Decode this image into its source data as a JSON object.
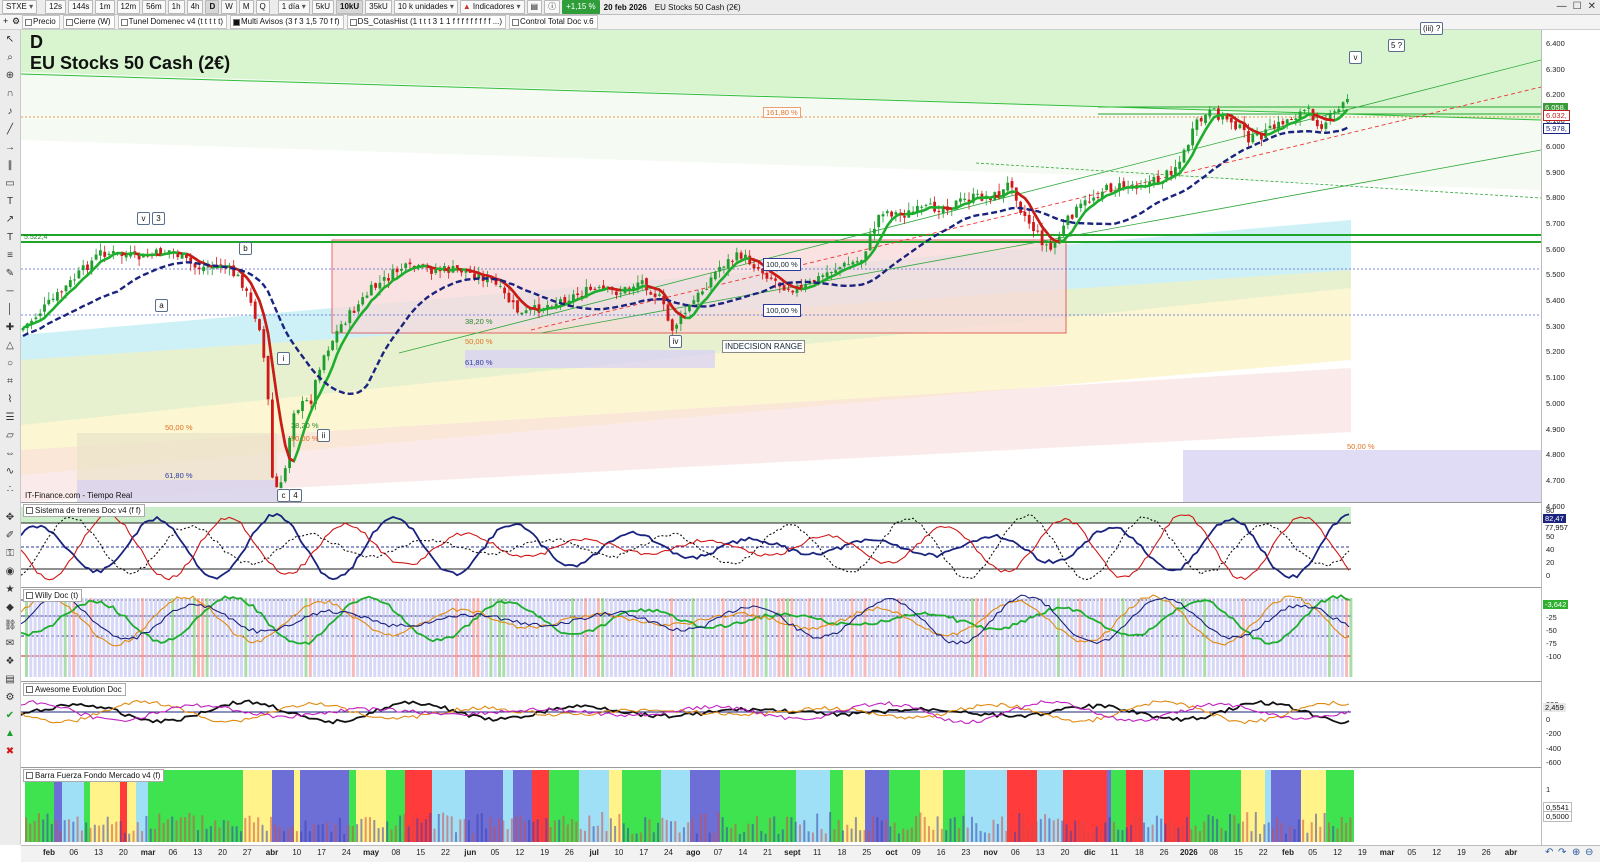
{
  "toolbar": {
    "symbol": "STXE",
    "intervals": [
      "12s",
      "144s",
      "1m",
      "12m",
      "56m",
      "1h",
      "4h",
      "D",
      "W",
      "M",
      "Q"
    ],
    "selected_interval": "D",
    "period": "1 día",
    "volume_units": [
      "5kU",
      "10kU",
      "35kU"
    ],
    "selected_volume_unit": "10kU",
    "units_dropdown": "10 k unidades",
    "indicators_button": "Indicadores",
    "change_badge": "+1,15 %",
    "date": "20 feb 2026",
    "instrument": "EU Stocks 50 Cash (2€)"
  },
  "indicator_bar": {
    "items": [
      "Precio",
      "Cierre (W)",
      "Tunel Domenec v4 (t t t t t)",
      "Multi Avisos (3 f 3 1,5 70 f f)",
      "DS_CotasHist (1 t t t 3 1 1 f f f f f f f f f ...)",
      "Control Total Doc v.6"
    ]
  },
  "main": {
    "timeframe_letter": "D",
    "title": "EU Stocks 50 Cash (2€)",
    "source": "IT-Finance.com - Tiempo Real",
    "price_ticks": [
      "6.400",
      "6.300",
      "6.200",
      "6.100",
      "6.000",
      "5.900",
      "5.800",
      "5.700",
      "5.600",
      "5.500",
      "5.400",
      "5.300",
      "5.200",
      "5.100",
      "5.000",
      "4.900",
      "4.800",
      "4.700",
      "4.600"
    ],
    "price_labels": [
      {
        "text": "6.058,",
        "bg": "#3b9b3b",
        "fg": "#ffffff"
      },
      {
        "text": "6.032,",
        "bg": "#ffffff",
        "fg": "#c02020"
      },
      {
        "text": "5.978,",
        "bg": "#ffffff",
        "fg": "#1a237e"
      }
    ],
    "level_label": "5.522,4",
    "waves": [
      "v",
      "3",
      "a",
      "b",
      "i",
      "ii",
      "c",
      "4",
      "iv",
      "v",
      "5 ?",
      "(iii) ?"
    ],
    "fibs": [
      "161,80 %",
      "50,00 %",
      "38,20 %",
      "50,00 %",
      "61,80 %",
      "38,20 %",
      "50,00 %",
      "61,80 %",
      "50,00 %"
    ],
    "box_labels": [
      "100,00 %",
      "100,00 %"
    ],
    "indecision_label": "INDECISION RANGE"
  },
  "panes": {
    "trenes": {
      "title": "Sistema de trenes Doc v4 (f f)",
      "ticks": [
        "80",
        "60",
        "50",
        "40",
        "20",
        "0"
      ],
      "labels": [
        "82,47",
        "77,957"
      ]
    },
    "willy": {
      "title": "Willy Doc (t)",
      "ticks": [
        "-25",
        "-50",
        "-75",
        "-100"
      ],
      "labels": [
        "-3,642"
      ]
    },
    "awesome": {
      "title": "Awesome Evolution Doc",
      "ticks": [
        "200",
        "0",
        "-200",
        "-400",
        "-600"
      ],
      "labels": [
        "2,459"
      ]
    },
    "barra": {
      "title": "Barra Fuerza Fondo Mercado v4 (f)",
      "ticks": [
        "1"
      ],
      "labels": [
        "0,5541",
        "0,5000"
      ]
    }
  },
  "time_axis": [
    "feb",
    "06",
    "13",
    "20",
    "mar",
    "06",
    "13",
    "20",
    "27",
    "abr",
    "10",
    "17",
    "24",
    "may",
    "08",
    "15",
    "22",
    "jun",
    "05",
    "12",
    "19",
    "26",
    "jul",
    "10",
    "17",
    "24",
    "ago",
    "07",
    "14",
    "21",
    "sept",
    "11",
    "18",
    "25",
    "oct",
    "09",
    "16",
    "23",
    "nov",
    "06",
    "13",
    "20",
    "dic",
    "11",
    "18",
    "26",
    "2026",
    "08",
    "15",
    "22",
    "feb",
    "05",
    "12",
    "19",
    "mar",
    "05",
    "12",
    "19",
    "26",
    "abr"
  ],
  "colors": {
    "bull": "#1e9e2e",
    "bear": "#d01818",
    "blue_ma": "#1a237e",
    "green_zone": "#d8f5d0",
    "red_box": "#f9d9d9",
    "cyan_band": "#a6e6f2",
    "yellow_band": "#faf1b4"
  }
}
